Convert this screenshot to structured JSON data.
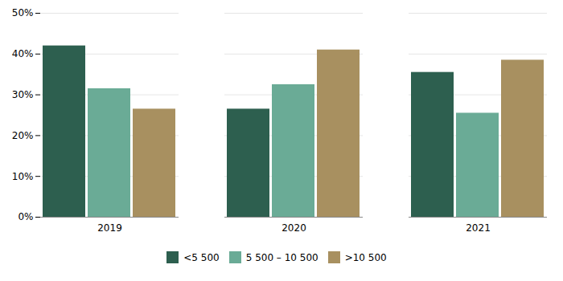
{
  "chart_data": {
    "type": "bar",
    "categories": [
      "2019",
      "2020",
      "2021"
    ],
    "series": [
      {
        "name": "<5 500",
        "color": "#2d5f4f",
        "values": [
          42,
          26.5,
          35.5
        ]
      },
      {
        "name": "5 500 – 10 500",
        "color": "#6aab96",
        "values": [
          31.5,
          32.5,
          25.5
        ]
      },
      {
        "name": ">10 500",
        "color": "#a89060",
        "values": [
          26.5,
          41,
          38.5
        ]
      }
    ],
    "ylim": [
      0,
      50
    ],
    "yticks": [
      {
        "value": 0,
        "label": "0%"
      },
      {
        "value": 10,
        "label": "10%"
      },
      {
        "value": 20,
        "label": "20%"
      },
      {
        "value": 30,
        "label": "30%"
      },
      {
        "value": 40,
        "label": "40%"
      },
      {
        "value": 50,
        "label": "50%"
      }
    ],
    "grid": true,
    "legend": "bottom"
  }
}
